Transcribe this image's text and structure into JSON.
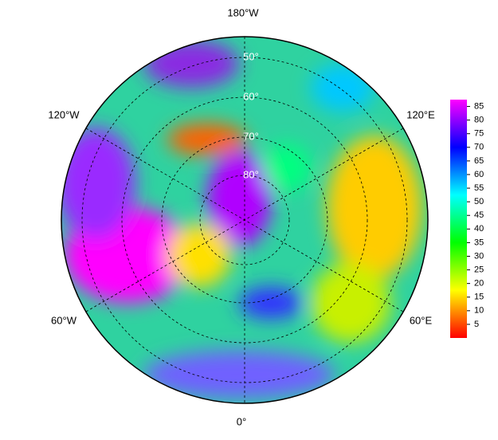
{
  "map": {
    "longitude_labels": {
      "top": "180°W",
      "upper_left": "120°W",
      "upper_right": "120°E",
      "lower_left": "60°W",
      "lower_right": "60°E",
      "bottom": "0°"
    },
    "latitude_labels": [
      "50°",
      "60°",
      "70°",
      "80°"
    ],
    "colorbar": {
      "lim": [
        0,
        87.5
      ],
      "ticks": [
        5,
        10,
        15,
        20,
        25,
        30,
        35,
        40,
        45,
        50,
        55,
        60,
        65,
        70,
        75,
        80,
        85
      ]
    }
  }
}
